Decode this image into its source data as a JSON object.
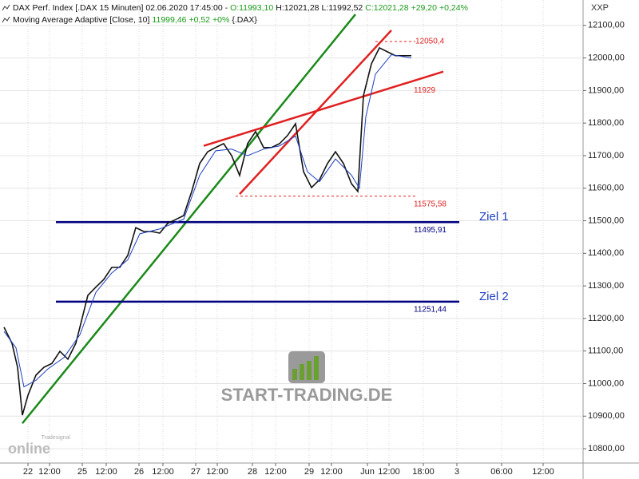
{
  "chart_data": {
    "type": "line",
    "header": [
      "DAX Perf. Index [.DAX  15 Minuten] 02.06.2020 17:45:00 -",
      "O:11993,10",
      "H:12021,28",
      "L:11992,52",
      "C:12021,28",
      "+29,20",
      "+0,24%"
    ],
    "header2": [
      "Moving Average Adaptive [Close, 10]",
      "11999,46",
      "+0,52",
      "+0%",
      "{.DAX}"
    ],
    "axis_name": "XXP",
    "watermark": "START-TRADING.DE",
    "logo": [
      "Tradesignal",
      "online"
    ],
    "xlim": [
      0,
      730
    ],
    "ylim": [
      10756,
      12178
    ],
    "grid": true,
    "xticks": [
      {
        "value": 35,
        "label": "22"
      },
      {
        "value": 62,
        "label": "12:00"
      },
      {
        "value": 103,
        "label": "25"
      },
      {
        "value": 133,
        "label": "12:00"
      },
      {
        "value": 174,
        "label": "26"
      },
      {
        "value": 204,
        "label": "12:00"
      },
      {
        "value": 245,
        "label": "27"
      },
      {
        "value": 272,
        "label": "12:00"
      },
      {
        "value": 316,
        "label": "28"
      },
      {
        "value": 345,
        "label": "12:00"
      },
      {
        "value": 387,
        "label": "29"
      },
      {
        "value": 415,
        "label": "12:00"
      },
      {
        "value": 460,
        "label": "Jun"
      },
      {
        "value": 487,
        "label": "12:00"
      },
      {
        "value": 530,
        "label": "18:00"
      },
      {
        "value": 572,
        "label": "3"
      },
      {
        "value": 628,
        "label": "06:00"
      },
      {
        "value": 680,
        "label": "12:00"
      }
    ],
    "yticks": [
      {
        "value": 10800,
        "label": "10800,00"
      },
      {
        "value": 10900,
        "label": "10900,00"
      },
      {
        "value": 11000,
        "label": "11000,00"
      },
      {
        "value": 11100,
        "label": "11100,00"
      },
      {
        "value": 11200,
        "label": "11200,00"
      },
      {
        "value": 11300,
        "label": "11300,00"
      },
      {
        "value": 11400,
        "label": "11400,00"
      },
      {
        "value": 11500,
        "label": "11500,00"
      },
      {
        "value": 11600,
        "label": "11600,00"
      },
      {
        "value": 11700,
        "label": "11700,00"
      },
      {
        "value": 11800,
        "label": "11800,00"
      },
      {
        "value": 11900,
        "label": "11900,00"
      },
      {
        "value": 12000,
        "label": "12000,00"
      },
      {
        "value": 12100,
        "label": "12100,00"
      }
    ],
    "series": [
      {
        "color": "#111111",
        "x": [
          5,
          15,
          22,
          28,
          35,
          45,
          55,
          65,
          75,
          85,
          95,
          100,
          110,
          120,
          130,
          140,
          150,
          160,
          170,
          180,
          190,
          200,
          210,
          220,
          230,
          240,
          250,
          260,
          270,
          280,
          290,
          300,
          310,
          320,
          330,
          340,
          350,
          360,
          370,
          380,
          390,
          400,
          410,
          420,
          430,
          440,
          448,
          455,
          465,
          475,
          485,
          495,
          505,
          515
        ],
        "values": [
          11173,
          11124,
          11050,
          10903,
          10964,
          11026,
          11050,
          11062,
          11099,
          11075,
          11124,
          11173,
          11271,
          11296,
          11320,
          11357,
          11357,
          11394,
          11479,
          11467,
          11467,
          11462,
          11492,
          11504,
          11516,
          11590,
          11676,
          11712,
          11725,
          11737,
          11700,
          11639,
          11737,
          11774,
          11725,
          11725,
          11737,
          11762,
          11798,
          11651,
          11602,
          11626,
          11676,
          11712,
          11676,
          11614,
          11590,
          11884,
          11982,
          12031,
          12019,
          12007,
          12007,
          12007
        ]
      },
      {
        "color": "#1f3fbf",
        "x": [
          5,
          20,
          30,
          45,
          60,
          80,
          100,
          120,
          140,
          160,
          175,
          200,
          230,
          250,
          270,
          290,
          310,
          330,
          350,
          370,
          385,
          400,
          420,
          440,
          450,
          458,
          470,
          490,
          515
        ],
        "values": [
          11160,
          11110,
          10990,
          11010,
          11045,
          11080,
          11150,
          11280,
          11340,
          11380,
          11460,
          11475,
          11505,
          11640,
          11715,
          11720,
          11700,
          11720,
          11730,
          11760,
          11650,
          11620,
          11690,
          11640,
          11600,
          11820,
          11950,
          12010,
          12000
        ]
      }
    ],
    "lines": [
      {
        "color": "#1a8a1a",
        "x": [
          28,
          445
        ],
        "values": [
          10878,
          12134
        ]
      },
      {
        "color": "#e02020",
        "x": [
          255,
          555
        ],
        "values": [
          11730,
          11958
        ],
        "label": "11929"
      },
      {
        "color": "#e02020",
        "x": [
          300,
          490
        ],
        "values": [
          11582,
          12085
        ]
      },
      {
        "color": "#e02020",
        "dashed": true,
        "x": [
          470,
          520
        ],
        "values": [
          12050.4,
          12050.4
        ],
        "label": "12050,4"
      },
      {
        "color": "#e02020",
        "dashed": true,
        "x": [
          295,
          520
        ],
        "values": [
          11575.58,
          11575.58
        ],
        "label": "11575,58"
      },
      {
        "color": "#000080",
        "x": [
          70,
          575
        ],
        "values": [
          11495.91,
          11495.91
        ],
        "label": "11495,91",
        "tag": "Ziel 1"
      },
      {
        "color": "#000080",
        "x": [
          70,
          575
        ],
        "values": [
          11251.44,
          11251.44
        ],
        "label": "11251,44",
        "tag": "Ziel 2"
      }
    ]
  }
}
